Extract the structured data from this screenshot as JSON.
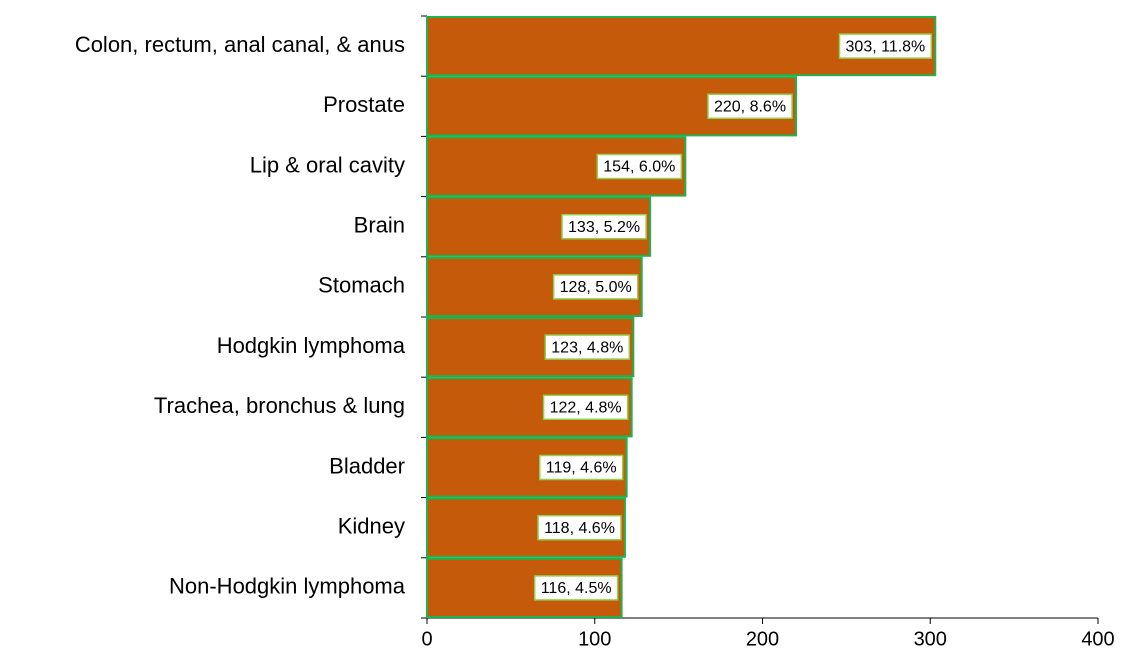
{
  "chart_data": {
    "type": "bar",
    "orientation": "horizontal",
    "categories": [
      "Colon, rectum, anal canal, & anus",
      "Prostate",
      "Lip & oral cavity",
      "Brain",
      "Stomach",
      "Hodgkin lymphoma",
      "Trachea, bronchus & lung",
      "Bladder",
      "Kidney",
      "Non-Hodgkin lymphoma"
    ],
    "values": [
      303,
      220,
      154,
      133,
      128,
      123,
      122,
      119,
      118,
      116
    ],
    "value_labels": [
      "303, 11.8%",
      "220, 8.6%",
      "154, 6.0%",
      "133, 5.2%",
      "128, 5.0%",
      "123, 4.8%",
      "122, 4.8%",
      "119, 4.6%",
      "118, 4.6%",
      "116, 4.5%"
    ],
    "color": "#c55a0b",
    "xlim": [
      0,
      400
    ],
    "xticks": [
      0,
      100,
      200,
      300,
      400
    ],
    "grid": false
  }
}
